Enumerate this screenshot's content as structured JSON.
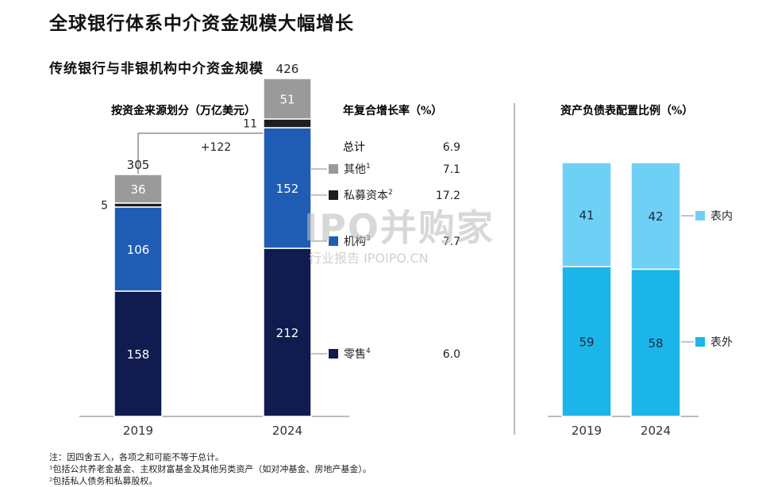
{
  "header": {
    "title": "全球银行体系中介资金规模大幅增长",
    "subtitle": "传统银行与非银机构中介资金规模"
  },
  "left_panel": {
    "label": "按资金来源划分（万亿美元）",
    "growth_label": "+122",
    "cagr_header": "年复合增长率（%）",
    "total_label": "总计",
    "total_cagr": "6.9"
  },
  "right_panel": {
    "label": "资产负债表配置比例（%）"
  },
  "colors": {
    "retail": "#101c4f",
    "institutional": "#1f5cb4",
    "private_capital": "#1e1e1e",
    "other": "#9a9a9a",
    "on_balance": "#6fd0f5",
    "off_balance": "#1bb5e9"
  },
  "chart_data": [
    {
      "type": "bar",
      "stacked": true,
      "categories": [
        "2019",
        "2024"
      ],
      "totals": [
        "305",
        "426"
      ],
      "series": [
        {
          "name": "零售",
          "footnote": "4",
          "cagr": "6.0",
          "values": [
            158,
            212
          ],
          "labels": [
            "158",
            "212"
          ],
          "color": "#101c4f"
        },
        {
          "name": "机构",
          "footnote": "3",
          "cagr": "7.7",
          "values": [
            106,
            152
          ],
          "labels": [
            "106",
            "152"
          ],
          "color": "#1f5cb4"
        },
        {
          "name": "私募资本",
          "footnote": "2",
          "cagr": "17.2",
          "values": [
            5,
            11
          ],
          "labels": [
            "5",
            "11"
          ],
          "color": "#1e1e1e"
        },
        {
          "name": "其他",
          "footnote": "1",
          "cagr": "7.1",
          "values": [
            36,
            51
          ],
          "labels": [
            "36",
            "51"
          ],
          "color": "#9a9a9a"
        }
      ],
      "ylabel": "按资金来源划分（万亿美元）"
    },
    {
      "type": "bar",
      "stacked": true,
      "percent": true,
      "categories": [
        "2019",
        "2024"
      ],
      "series": [
        {
          "name": "表外",
          "values": [
            59,
            58
          ],
          "labels": [
            "59",
            "58"
          ],
          "color": "#1bb5e9"
        },
        {
          "name": "表内",
          "values": [
            41,
            42
          ],
          "labels": [
            "41",
            "42"
          ],
          "color": "#6fd0f5"
        }
      ],
      "ylim": [
        0,
        100
      ],
      "ylabel": "资产负债表配置比例（%）"
    }
  ],
  "notes": [
    "注：因四舍五入，各项之和可能不等于总计。",
    "¹包括公共养老金基金、主权财富基金及其他另类资产（如对冲基金、房地产基金）。",
    "²包括私人债务和私募股权。"
  ],
  "watermark": {
    "main": "IPO并购家",
    "sub": "行业报告 IPOIPO.CN"
  }
}
